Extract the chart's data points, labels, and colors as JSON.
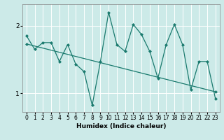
{
  "title": "",
  "xlabel": "Humidex (Indice chaleur)",
  "ylabel": "",
  "background_color": "#cceae8",
  "grid_color": "#ffffff",
  "line_color": "#1a7a6e",
  "xlim": [
    -0.5,
    23.5
  ],
  "ylim": [
    0.72,
    2.32
  ],
  "yticks": [
    1,
    2
  ],
  "xticks": [
    0,
    1,
    2,
    3,
    4,
    5,
    6,
    7,
    8,
    9,
    10,
    11,
    12,
    13,
    14,
    15,
    16,
    17,
    18,
    19,
    20,
    21,
    22,
    23
  ],
  "series1_x": [
    0,
    1,
    2,
    3,
    4,
    5,
    6,
    7,
    8,
    9,
    10,
    11,
    12,
    13,
    14,
    15,
    16,
    17,
    18,
    19,
    20,
    21,
    22,
    23
  ],
  "series1_y": [
    1.85,
    1.65,
    1.75,
    1.75,
    1.47,
    1.72,
    1.43,
    1.32,
    0.82,
    1.47,
    2.2,
    1.72,
    1.62,
    2.02,
    1.87,
    1.62,
    1.22,
    1.72,
    2.02,
    1.72,
    1.05,
    1.47,
    1.47,
    0.92
  ],
  "series2_x": [
    0,
    23
  ],
  "series2_y": [
    1.73,
    1.02
  ]
}
